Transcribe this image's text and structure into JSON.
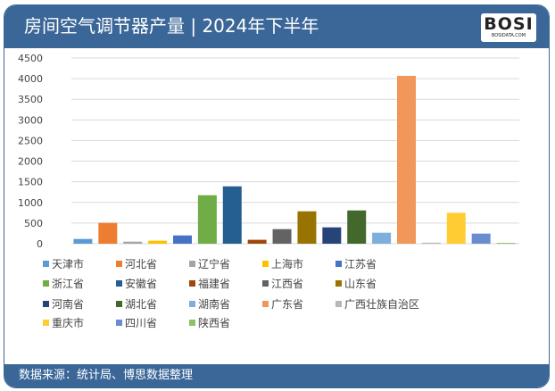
{
  "header": {
    "title": "房间空气调节器产量 | 2024年下半年",
    "logo_text": "BOSI",
    "logo_sub": "BOSIDATA.COM"
  },
  "footer": {
    "source": "数据来源：统计局、博思数据整理"
  },
  "colors": {
    "header_bg": "#3b6798"
  },
  "chart_data": {
    "type": "bar",
    "title": "",
    "xlabel": "",
    "ylabel": "",
    "ylim": [
      0,
      4500
    ],
    "yticks": [
      "0",
      "500",
      "1000",
      "1500",
      "2000",
      "2500",
      "3000",
      "3500",
      "4000",
      "4500"
    ],
    "grid": true,
    "legend_position": "bottom",
    "series": [
      {
        "name": "天津市",
        "value": 115,
        "color": "#5b9bd5"
      },
      {
        "name": "河北省",
        "value": 505,
        "color": "#ed7d31"
      },
      {
        "name": "辽宁省",
        "value": 50,
        "color": "#a5a5a5"
      },
      {
        "name": "上海市",
        "value": 72,
        "color": "#ffc000"
      },
      {
        "name": "江苏省",
        "value": 200,
        "color": "#4472c4"
      },
      {
        "name": "浙江省",
        "value": 1175,
        "color": "#70ad47"
      },
      {
        "name": "安徽省",
        "value": 1390,
        "color": "#255e91"
      },
      {
        "name": "福建省",
        "value": 95,
        "color": "#9e480e"
      },
      {
        "name": "江西省",
        "value": 353,
        "color": "#636363"
      },
      {
        "name": "山东省",
        "value": 785,
        "color": "#997300"
      },
      {
        "name": "河南省",
        "value": 396,
        "color": "#264478"
      },
      {
        "name": "湖北省",
        "value": 806,
        "color": "#43682b"
      },
      {
        "name": "湖南省",
        "value": 266,
        "color": "#7cafdd"
      },
      {
        "name": "广东省",
        "value": 4068,
        "color": "#f1975a"
      },
      {
        "name": "广西壮族自治区",
        "value": 25,
        "color": "#b7b7b7"
      },
      {
        "name": "重庆市",
        "value": 749,
        "color": "#ffcd33"
      },
      {
        "name": "四川省",
        "value": 245,
        "color": "#698ed0"
      },
      {
        "name": "陕西省",
        "value": 20,
        "color": "#8cc168"
      }
    ]
  }
}
